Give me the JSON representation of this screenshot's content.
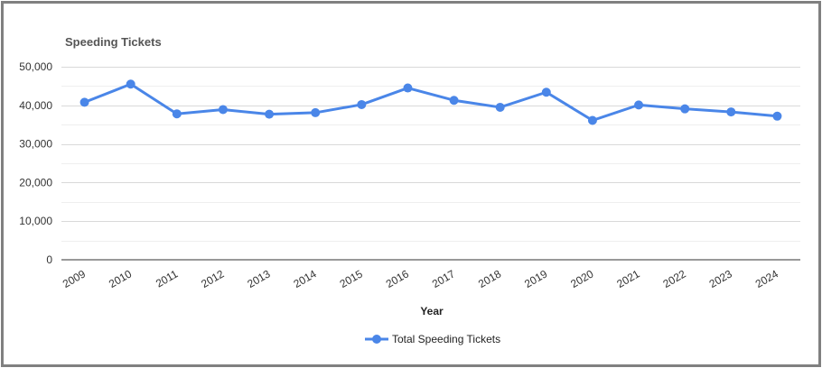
{
  "chart_data": {
    "type": "line",
    "title": "Speeding Tickets",
    "xlabel": "Year",
    "ylabel": "",
    "ylim": [
      0,
      50000
    ],
    "yticks": [
      "0",
      "10,000",
      "20,000",
      "30,000",
      "40,000",
      "50,000"
    ],
    "yticks_values": [
      0,
      10000,
      20000,
      30000,
      40000,
      50000
    ],
    "categories": [
      "2009",
      "2010",
      "2011",
      "2012",
      "2013",
      "2014",
      "2015",
      "2016",
      "2017",
      "2018",
      "2019",
      "2020",
      "2021",
      "2022",
      "2023",
      "2024"
    ],
    "series": [
      {
        "name": "Total Speeding Tickets",
        "color": "#4a86e8",
        "values": [
          40800,
          45500,
          37800,
          38900,
          37700,
          38100,
          40200,
          44500,
          41300,
          39500,
          43400,
          36100,
          40100,
          39100,
          38300,
          37200
        ]
      }
    ],
    "grid": true,
    "legend_position": "bottom"
  }
}
